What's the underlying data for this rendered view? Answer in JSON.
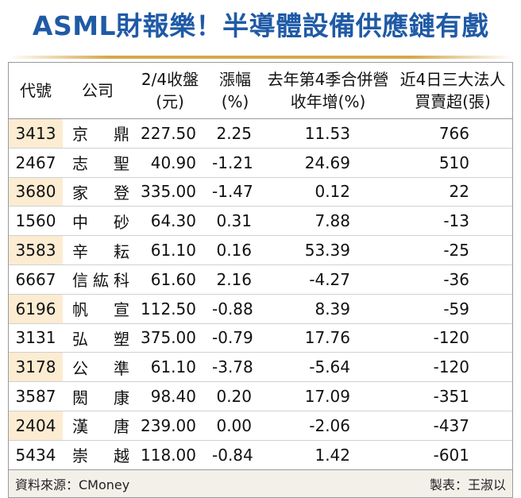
{
  "title": "ASML財報樂！半導體設備供應鏈有戲",
  "table": {
    "header": [
      "代號",
      "公司",
      "2/4收盤(元)",
      "漲幅(%)",
      "去年第4季合併營收年增(%)",
      "近4日三大法人買賣超(張)"
    ],
    "rows": [
      [
        "3413",
        "京鼎",
        "227.50",
        "2.25",
        "11.53",
        "766"
      ],
      [
        "2467",
        "志聖",
        "40.90",
        "-1.21",
        "24.69",
        "510"
      ],
      [
        "3680",
        "家登",
        "335.00",
        "-1.47",
        "0.12",
        "22"
      ],
      [
        "1560",
        "中砂",
        "64.30",
        "0.31",
        "7.88",
        "-13"
      ],
      [
        "3583",
        "辛耘",
        "61.10",
        "0.16",
        "53.39",
        "-25"
      ],
      [
        "6667",
        "信紘科",
        "61.60",
        "2.16",
        "-4.27",
        "-36"
      ],
      [
        "6196",
        "帆宣",
        "112.50",
        "-0.88",
        "8.39",
        "-59"
      ],
      [
        "3131",
        "弘塑",
        "375.00",
        "-0.79",
        "17.76",
        "-120"
      ],
      [
        "3178",
        "公準",
        "61.10",
        "-3.78",
        "-5.64",
        "-120"
      ],
      [
        "3587",
        "閎康",
        "98.40",
        "0.20",
        "17.09",
        "-351"
      ],
      [
        "2404",
        "漢唐",
        "239.00",
        "0.00",
        "-2.06",
        "-437"
      ],
      [
        "5434",
        "崇越",
        "118.00",
        "-0.84",
        "1.42",
        "-601"
      ]
    ]
  },
  "footer": {
    "source": "資料來源：CMoney",
    "credit": "製表：王淑以"
  }
}
